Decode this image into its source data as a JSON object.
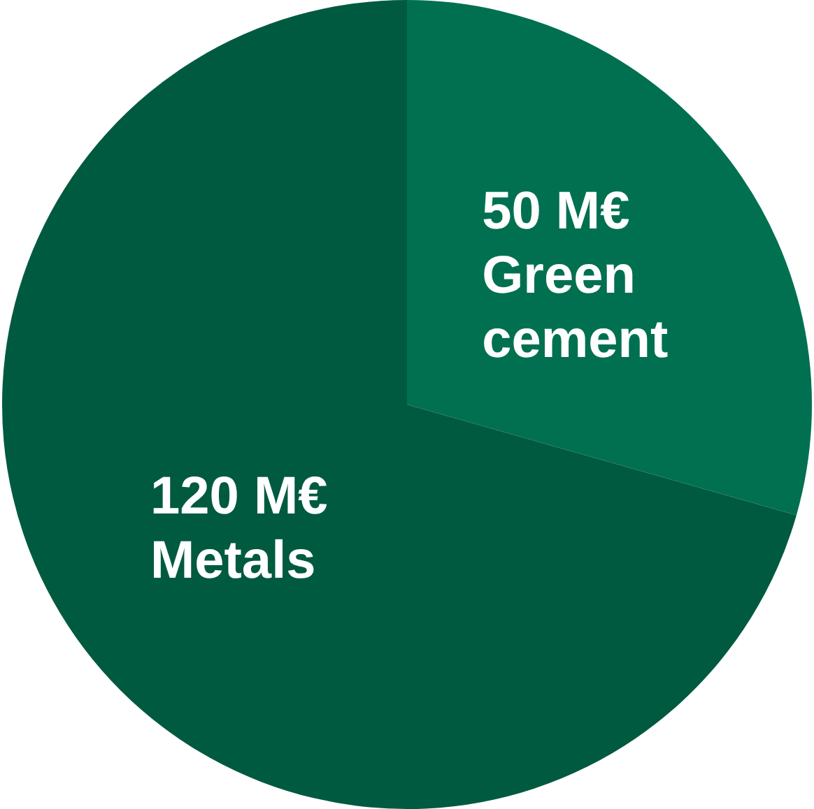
{
  "chart_data": {
    "type": "pie",
    "categories": [
      "Green cement",
      "Metals"
    ],
    "values": [
      50,
      120
    ],
    "value_labels": [
      "50 M€",
      "120 M€"
    ],
    "colors": [
      "#007050",
      "#005a3f"
    ],
    "legend": false
  }
}
